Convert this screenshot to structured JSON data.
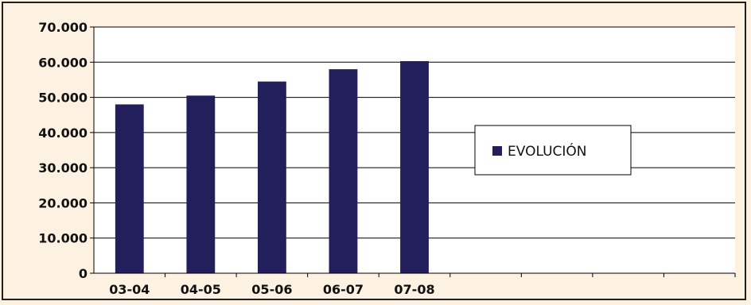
{
  "chart_data": {
    "type": "bar",
    "categories": [
      "03-04",
      "04-05",
      "05-06",
      "06-07",
      "07-08",
      "",
      "",
      "",
      ""
    ],
    "series": [
      {
        "name": "EVOLUCIÓN",
        "values": [
          48000,
          50500,
          54500,
          58000,
          60300,
          null,
          null,
          null,
          null
        ]
      }
    ],
    "title": "",
    "xlabel": "",
    "ylabel": "",
    "ylim": [
      0,
      70000
    ],
    "yticks": [
      0,
      10000,
      20000,
      30000,
      40000,
      50000,
      60000,
      70000
    ],
    "ytick_labels": [
      "0",
      "10.000",
      "20.000",
      "30.000",
      "40.000",
      "50.000",
      "60.000",
      "70.000"
    ],
    "grid": true,
    "legend_position": "right",
    "colors": {
      "bar": "#231f5c",
      "plot_background": "#ffffff",
      "page_background": "#fdf2e1",
      "gridline": "#000000"
    }
  }
}
